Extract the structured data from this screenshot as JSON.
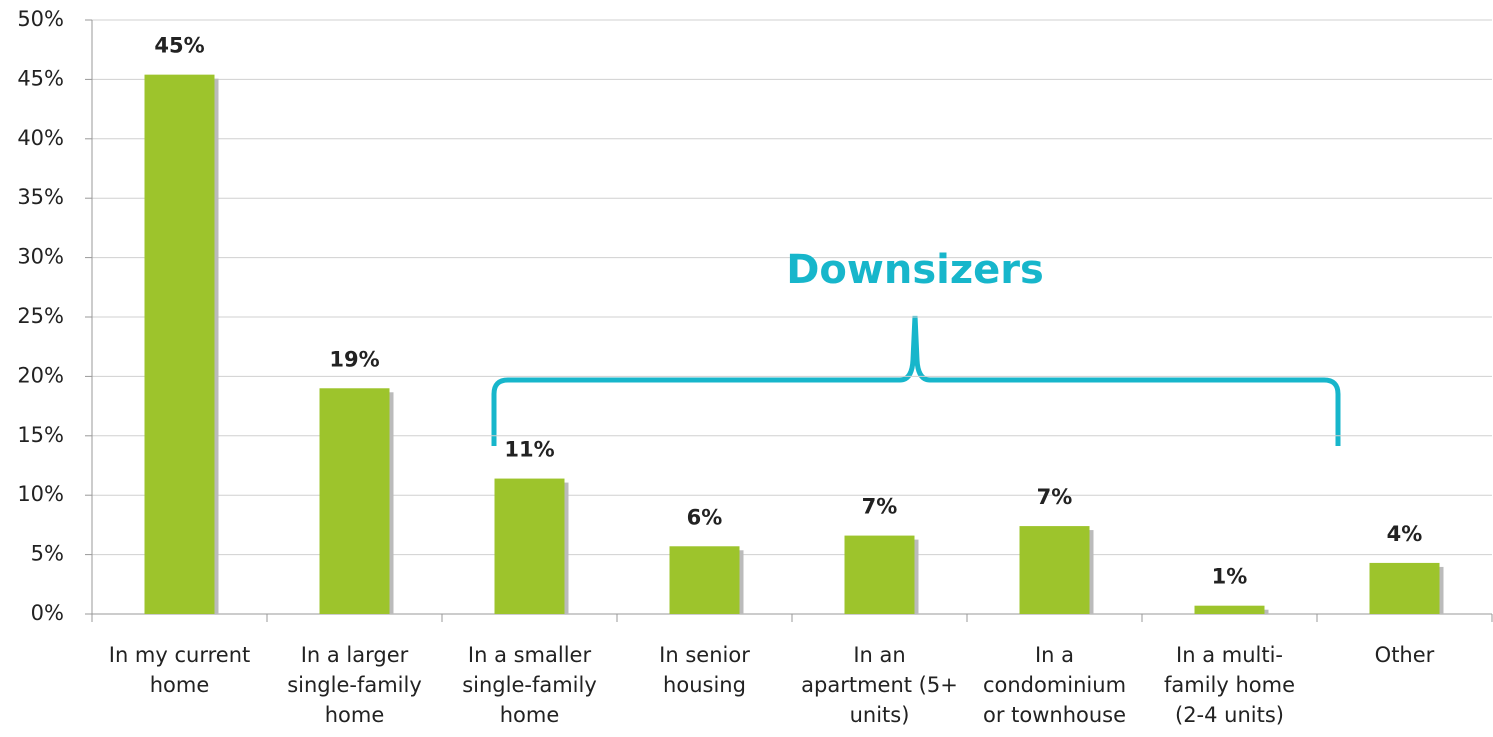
{
  "chart_data": {
    "type": "bar",
    "categories": [
      "In my current home",
      "In a larger single-family home",
      "In a smaller single-family home",
      "In senior housing",
      "In an apartment (5+ units)",
      "In a condominium or townhouse",
      "In a multi-family home (2-4 units)",
      "Other"
    ],
    "values": [
      45.4,
      19,
      11.4,
      5.7,
      6.6,
      7.4,
      0.7,
      4.3
    ],
    "value_labels": [
      "45%",
      "19%",
      "11%",
      "6%",
      "7%",
      "7%",
      "1%",
      "4%"
    ],
    "color": "#9dc42c",
    "ylim": [
      0,
      50
    ],
    "yticks": [
      {
        "value": 0,
        "label": "0%"
      },
      {
        "value": 5,
        "label": "5%"
      },
      {
        "value": 10,
        "label": "10%"
      },
      {
        "value": 15,
        "label": "15%"
      },
      {
        "value": 20,
        "label": "20%"
      },
      {
        "value": 25,
        "label": "25%"
      },
      {
        "value": 30,
        "label": "30%"
      },
      {
        "value": 35,
        "label": "35%"
      },
      {
        "value": 40,
        "label": "40%"
      },
      {
        "value": 45,
        "label": "45%"
      },
      {
        "value": 50,
        "label": "50%"
      }
    ],
    "grid": true,
    "annotation": "Downsizers"
  }
}
